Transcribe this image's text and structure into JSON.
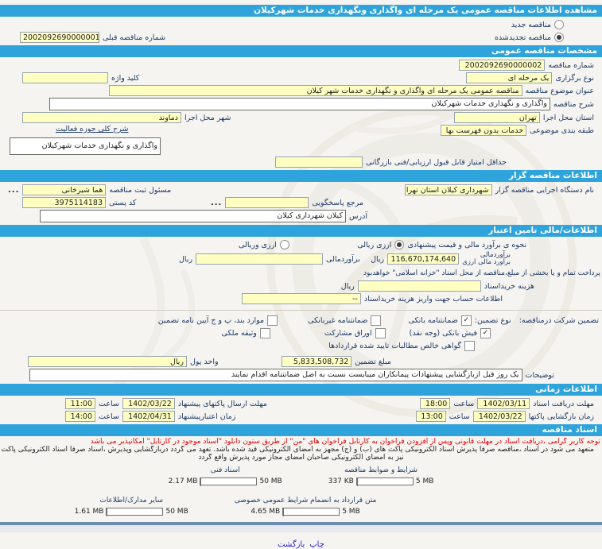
{
  "header": {
    "title": "مشاهده اطلاعات مناقصه عمومی یک مرحله ای واگذاری ونگهداری خدمات شهرکیلان"
  },
  "top": {
    "radio_new": "مناقصه جدید",
    "radio_renewed": "مناقصه تجدیدشده",
    "new_selected": false,
    "renewed_selected": true,
    "prev_label": "شماره مناقصه قبلی",
    "prev_value": "2002092690000001"
  },
  "general": {
    "bar": "مشخصات مناقصه عمومی",
    "tender_no_label": "شماره مناقصه",
    "tender_no": "2002092690000002",
    "type_label": "نوع برگزاری",
    "type": "یک مرحله ای",
    "keyword_label": "کلید واژه",
    "keyword": "",
    "subject_label": "عنوان موضوع مناقصه",
    "subject": "مناقصه عمومی یک مرحله ای واگذاری و نگهداری خدمات شهر کیلان",
    "desc_label": "شرح مناقصه",
    "desc": "واگذاری و نگهداری خدمات شهرکیلان",
    "province_label": "استان محل اجرا",
    "province": "تهران",
    "city_label": "شهر محل اجرا",
    "city": "دماوند",
    "category_label": "طبقه بندی موضوعی",
    "category": "خدمات بدون فهرست بها",
    "activity_label": "شرح کلی حوزه فعالیت",
    "activity": "واگذاری و نگهداری خدمات شهرکیلان",
    "min_score_label": "حداقل امتیاز قابل قبول ارزیابی/فنی بازرگانی",
    "min_score": ""
  },
  "agency": {
    "bar": "اطلاعات مناقصه گزار",
    "name_label": "نام دستگاه اجرایی مناقصه گزار",
    "name": "شهرداری کیلان استان تهران",
    "registrar_label": "مسئول ثبت مناقصه",
    "registrar": "هما شیرخانی",
    "more": "...",
    "contact_label": "مرجع پاسخگویی",
    "contact": "",
    "postal_label": "کد پستی",
    "postal": "3975114183",
    "address_label": "آدرس",
    "address": "کیلان شهرداری کیلان"
  },
  "financial": {
    "bar": "اطلاعات/مالی تامین اعتبار",
    "method_label": "نحوه ی برآورد مالی و قیمت پیشنهادی",
    "method_rial": "ارزی ریالی",
    "method_currency": "ارزی وریالی",
    "rial_selected": true,
    "currency_selected": false,
    "estimate_label1": "برآوردمالی",
    "estimate_label2": "برآورد مالی ارزی",
    "estimate": "116,670,174,640",
    "rial_unit": "ریال",
    "estimate2_label": "برآوردمالی",
    "estimate2": "",
    "treasury_note": "پرداخت تمام و یا بخشی از مبلغ،مناقصه از محل اسناد \"خزانه اسلامی\" خواهدبود",
    "doc_fee_label": "هزینه خریداسناد",
    "doc_fee": "",
    "account_label": "اطلاعات حساب جهت واریز هزینه خریداسناد",
    "account": "--",
    "guarantee_label": "تضمین شرکت درمناقصه:",
    "guarantee_type_label": "نوع تضمین:",
    "cb_bank": "ضمانتنامه بانکی",
    "cb_nonbank": "ضمانتنامه غیربانکی",
    "cb_cases": "موارد بند، پ و ج آیین نامه تضمین",
    "cb_cash": "فیش بانکی (وجه نقد)",
    "cb_bonds": "اوراق مشارکت",
    "cb_estate": "وثیقه ملکی",
    "cb_claims": "گواهی خالص مطالبات تایید شده قراردادها",
    "checks": {
      "bank": true,
      "nonbank": false,
      "cases": false,
      "cash": true,
      "bonds": false,
      "estate": false,
      "claims": false
    },
    "amount_label": "مبلغ تضمین",
    "amount": "5,833,508,732",
    "currency_label": "واحد پول",
    "currency": "ریال",
    "notes_label": "توضیحات",
    "notes": "یک روز قبل ازبازگشایی پیشنهادات پیمانکاران میبایست نسبت به اصل ضمانتنامه اقدام نمایند"
  },
  "schedule": {
    "bar": "اطلاعات زمانی",
    "hour_label": "ساعت",
    "items": [
      {
        "label": "مهلت دریافت اسناد",
        "date": "1402/03/11",
        "time": "18:00"
      },
      {
        "label": "مهلت ارسال پاکتهای پیشنهاد",
        "date": "1402/03/22",
        "time": "11:00"
      },
      {
        "label": "زمان بازگشایی پاکتها",
        "date": "1402/03/22",
        "time": "13:00"
      },
      {
        "label": "زمان اعتبارپیشنهاد",
        "date": "1402/04/31",
        "time": "14:00"
      }
    ]
  },
  "documents": {
    "bar": "اسناد مناقصه",
    "red_note": "توجه کاربر گرامی ،دریافت اسناد در مهلت قانونی وپس از افزودن فراخوان به کارتابل فراخوان های \"من\" از طریق ستون دانلود \"اسناد موجود در کارتابل\" امکانپذیر می باشد",
    "note1": "متعهد می شود در اسناد ،مناقصه صرفاً پذیرش اسناد الکترونیکی پاکت های (ب) و (ج) مجهز به امضای الکترونیکی قید شده باشد. تعهد می گردد دربازگشایی وپذیرش ،اسناد صرفاً اسناد الکترونیکی پاکت های پیشنهاد (ب) و(ج)",
    "note2": "نیز به امضای الکترونیکی صاحبان امضای مجاز مورد پذیرش واقع گردد",
    "uploads": [
      {
        "label": "شرایط و ضوابط مناقصه",
        "size": "337 KB",
        "max": "5 MB",
        "pct": 7
      },
      {
        "label": "اسناد فنی",
        "size": "2.17 MB",
        "max": "50 MB",
        "pct": 5
      },
      {
        "label": "متن قرارداد به انضمام شرایط عمومی خصوصی",
        "size": "4.65 MB",
        "max": "5 MB",
        "pct": 93
      },
      {
        "label": "سایر مدارک/اطلاعات",
        "size": "1.61 MB",
        "max": "50 MB",
        "pct": 4
      }
    ]
  },
  "footer": {
    "print": "چاپ",
    "back": "بازگشت"
  },
  "colors": {
    "bar_blue": "#2fa3dc",
    "field_yellow": "#ffffc2",
    "alert_red": "#e00000",
    "progress_green": "#94c83d",
    "footer_bar": "#6c8cad"
  }
}
